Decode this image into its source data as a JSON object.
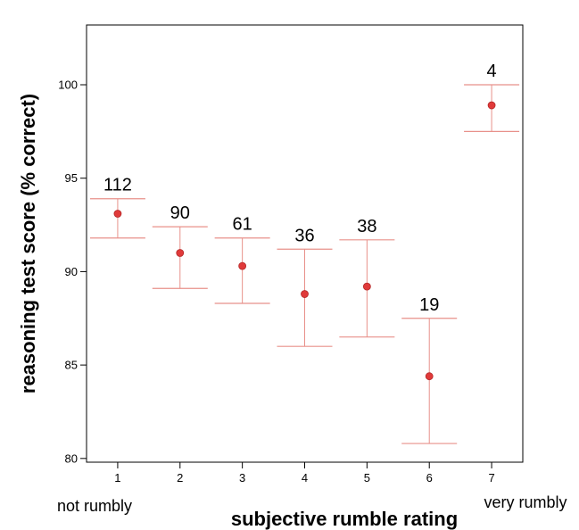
{
  "chart_data": {
    "type": "scatter",
    "title": "",
    "xlabel": "subjective rumble rating",
    "ylabel": "reasoning test score (% correct)",
    "xlim": [
      0.5,
      7.5
    ],
    "ylim": [
      79.8,
      103.2
    ],
    "x_ticks": [
      1,
      2,
      3,
      4,
      5,
      6,
      7
    ],
    "y_ticks": [
      80,
      85,
      90,
      95,
      100
    ],
    "x_end_labels": {
      "left": "not rumbly",
      "right": "very rumbly"
    },
    "grid": false,
    "error_bars": true,
    "marker_color": "#e03a3a",
    "errorbar_color": "#e8908a",
    "points": [
      {
        "x": 1,
        "y": 93.1,
        "low": 91.8,
        "high": 93.9,
        "n": "112"
      },
      {
        "x": 2,
        "y": 91.0,
        "low": 89.1,
        "high": 92.4,
        "n": "90"
      },
      {
        "x": 3,
        "y": 90.3,
        "low": 88.3,
        "high": 91.8,
        "n": "61"
      },
      {
        "x": 4,
        "y": 88.8,
        "low": 86.0,
        "high": 91.2,
        "n": "36"
      },
      {
        "x": 5,
        "y": 89.2,
        "low": 86.5,
        "high": 91.7,
        "n": "38"
      },
      {
        "x": 6,
        "y": 84.4,
        "low": 80.8,
        "high": 87.5,
        "n": "19"
      },
      {
        "x": 7,
        "y": 98.9,
        "low": 97.5,
        "high": 100.0,
        "n": "4"
      }
    ]
  }
}
